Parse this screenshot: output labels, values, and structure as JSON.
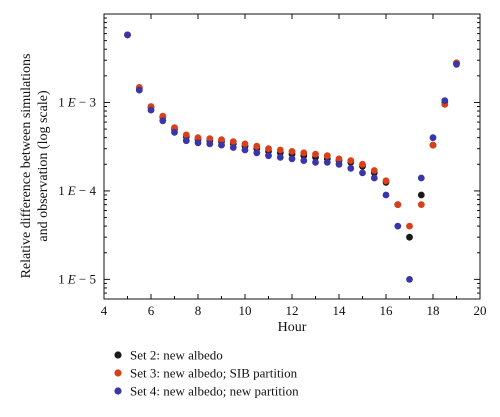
{
  "chart_data": {
    "type": "scatter",
    "ylabel_line1": "Relative difference between simulations",
    "ylabel_line2": "and observation (log scale)",
    "xlabel": "Hour",
    "x_ticks": [
      4,
      6,
      8,
      10,
      12,
      14,
      16,
      18,
      20
    ],
    "xlim": [
      4,
      20
    ],
    "y_scale": "log",
    "ylim": [
      6e-06,
      0.01
    ],
    "y_ticks": [
      {
        "value": 0.001,
        "label_base": "1",
        "label_e": "E",
        "label_exp": " − 3"
      },
      {
        "value": 0.0001,
        "label_base": "1",
        "label_e": "E",
        "label_exp": " − 4"
      },
      {
        "value": 1e-05,
        "label_base": "1",
        "label_e": "E",
        "label_exp": " − 5"
      }
    ],
    "grid": false,
    "legend_position": "bottom",
    "series": [
      {
        "name": "Set 2: new albedo",
        "color": "#1a1a1a",
        "points": [
          [
            5,
            0.0058
          ],
          [
            5.5,
            0.00145
          ],
          [
            6,
            0.00088
          ],
          [
            6.5,
            0.00068
          ],
          [
            7,
            0.0005
          ],
          [
            7.5,
            0.00041
          ],
          [
            8,
            0.00038
          ],
          [
            8.5,
            0.00037
          ],
          [
            9,
            0.00036
          ],
          [
            9.5,
            0.00034
          ],
          [
            10,
            0.00032
          ],
          [
            10.5,
            0.0003
          ],
          [
            11,
            0.00028
          ],
          [
            11.5,
            0.00027
          ],
          [
            12,
            0.00026
          ],
          [
            12.5,
            0.00025
          ],
          [
            13,
            0.00024
          ],
          [
            13.5,
            0.00023
          ],
          [
            14,
            0.00022
          ],
          [
            14.5,
            0.00021
          ],
          [
            15,
            0.00019
          ],
          [
            15.5,
            0.00016
          ],
          [
            16,
            0.000125
          ],
          [
            16.5,
            7e-05
          ],
          [
            17,
            3e-05
          ],
          [
            17.5,
            9e-05
          ],
          [
            18,
            0.00033
          ],
          [
            18.5,
            0.001
          ],
          [
            19,
            0.0028
          ]
        ]
      },
      {
        "name": "Set 3: new albedo; SIB partition",
        "color": "#d9401a",
        "points": [
          [
            5,
            0.0058
          ],
          [
            5.5,
            0.00148
          ],
          [
            6,
            0.0009
          ],
          [
            6.5,
            0.0007
          ],
          [
            7,
            0.00052
          ],
          [
            7.5,
            0.00043
          ],
          [
            8,
            0.0004
          ],
          [
            8.5,
            0.00039
          ],
          [
            9,
            0.00038
          ],
          [
            9.5,
            0.00036
          ],
          [
            10,
            0.00034
          ],
          [
            10.5,
            0.00032
          ],
          [
            11,
            0.0003
          ],
          [
            11.5,
            0.00029
          ],
          [
            12,
            0.00028
          ],
          [
            12.5,
            0.00027
          ],
          [
            13,
            0.00026
          ],
          [
            13.5,
            0.00025
          ],
          [
            14,
            0.00023
          ],
          [
            14.5,
            0.00022
          ],
          [
            15,
            0.0002
          ],
          [
            15.5,
            0.00017
          ],
          [
            16,
            0.00013
          ],
          [
            16.5,
            7e-05
          ],
          [
            17,
            4e-05
          ],
          [
            17.5,
            7e-05
          ],
          [
            18,
            0.00033
          ],
          [
            18.5,
            0.00095
          ],
          [
            19,
            0.0028
          ]
        ]
      },
      {
        "name": "Set 4: new albedo; new partition",
        "color": "#3a35a8",
        "points": [
          [
            5,
            0.0058
          ],
          [
            5.5,
            0.00138
          ],
          [
            6,
            0.00082
          ],
          [
            6.5,
            0.00062
          ],
          [
            7,
            0.00046
          ],
          [
            7.5,
            0.00037
          ],
          [
            8,
            0.00035
          ],
          [
            8.5,
            0.00034
          ],
          [
            9,
            0.00033
          ],
          [
            9.5,
            0.00031
          ],
          [
            10,
            0.00029
          ],
          [
            10.5,
            0.00027
          ],
          [
            11,
            0.00025
          ],
          [
            11.5,
            0.00024
          ],
          [
            12,
            0.00023
          ],
          [
            12.5,
            0.00022
          ],
          [
            13,
            0.00021
          ],
          [
            13.5,
            0.00021
          ],
          [
            14,
            0.0002
          ],
          [
            14.5,
            0.00018
          ],
          [
            15,
            0.00016
          ],
          [
            15.5,
            0.00014
          ],
          [
            16,
            9e-05
          ],
          [
            16.5,
            4e-05
          ],
          [
            17,
            1e-05
          ],
          [
            17.5,
            0.00014
          ],
          [
            18,
            0.0004
          ],
          [
            18.5,
            0.00105
          ],
          [
            19,
            0.0027
          ]
        ]
      }
    ]
  }
}
